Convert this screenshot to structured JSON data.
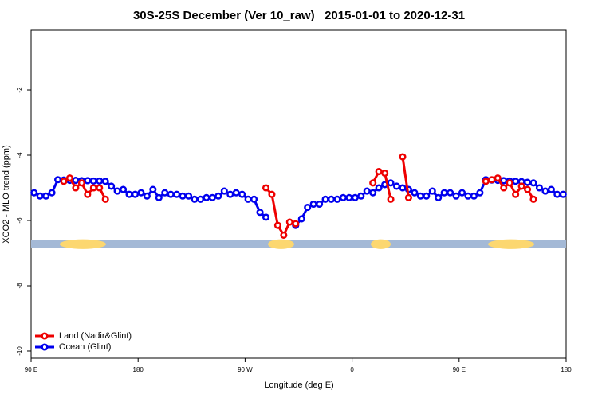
{
  "chart_data": {
    "type": "line",
    "title": "30S-25S December (Ver 10_raw)   2015-01-01 to 2020-12-31",
    "x_label": "Longitude (deg E)",
    "y_label": "XCO2 - MLO trend (ppm)",
    "xlim": [
      90,
      540
    ],
    "ylim": [
      -10.22,
      -0.17
    ],
    "xticks": [
      {
        "value": 90,
        "label": "90 E"
      },
      180,
      {
        "value": 270,
        "label": "90 W"
      },
      {
        "value": 360,
        "label": "0"
      },
      {
        "value": 450,
        "label": "90 E"
      },
      {
        "value": 540,
        "label": "180"
      }
    ],
    "yticks": [
      -10,
      -8,
      -6,
      -4,
      -2
    ],
    "legend": "bottom-left",
    "band": {
      "color": "#a4b9d6",
      "land_color": "#fcd770",
      "ylim": [
        -6.6,
        -6.85
      ],
      "land_spans": [
        [
          114.1,
          153.0
        ],
        [
          289.2,
          311.3
        ],
        [
          375.7,
          392.5
        ],
        [
          474.3,
          513.2
        ]
      ]
    },
    "x": [
      92.5,
      97.5,
      102.5,
      107.5,
      112.5,
      117.5,
      122.5,
      127.5,
      132.5,
      137.5,
      142.5,
      147.5,
      152.5,
      157.5,
      162.5,
      167.5,
      172.5,
      177.5,
      182.5,
      187.5,
      192.5,
      197.5,
      202.5,
      207.5,
      212.5,
      217.5,
      222.5,
      227.5,
      232.5,
      237.5,
      242.5,
      247.5,
      252.5,
      257.5,
      262.5,
      267.5,
      272.5,
      277.5,
      282.5,
      287.5,
      292.5,
      297.5,
      302.5,
      307.5,
      312.5,
      317.5,
      322.5,
      327.5,
      332.5,
      337.5,
      342.5,
      347.5,
      352.5,
      357.5,
      362.5,
      367.5,
      372.5,
      377.5,
      382.5,
      387.5,
      392.5,
      397.5,
      402.5,
      407.5,
      412.5,
      417.5,
      422.5,
      427.5,
      432.5,
      437.5,
      442.5,
      447.5,
      452.5,
      457.5,
      462.5,
      467.5,
      472.5,
      477.5,
      482.5,
      487.5,
      492.5,
      497.5,
      502.5,
      507.5,
      512.5,
      517.5,
      522.5,
      527.5,
      532.5,
      537.5
    ],
    "series": [
      {
        "name": "Ocean (Glint)",
        "color": "#0000ee",
        "values": [
          -5.15,
          -5.25,
          -5.25,
          -5.15,
          -4.75,
          -4.76,
          -4.77,
          -4.77,
          -4.78,
          -4.78,
          -4.79,
          -4.79,
          -4.8,
          -4.95,
          -5.1,
          -5.05,
          -5.2,
          -5.2,
          -5.15,
          -5.25,
          -5.05,
          -5.3,
          -5.15,
          -5.2,
          -5.2,
          -5.25,
          -5.25,
          -5.35,
          -5.35,
          -5.3,
          -5.3,
          -5.25,
          -5.1,
          -5.2,
          -5.15,
          -5.2,
          -5.35,
          -5.35,
          -5.75,
          -5.9,
          null,
          null,
          null,
          null,
          -6.15,
          -5.95,
          -5.6,
          -5.5,
          -5.5,
          -5.35,
          -5.35,
          -5.35,
          -5.3,
          -5.3,
          -5.3,
          -5.25,
          -5.1,
          -5.15,
          -5.0,
          -4.9,
          -4.85,
          -4.95,
          -5.0,
          -5.05,
          -5.15,
          -5.25,
          -5.25,
          -5.1,
          -5.3,
          -5.15,
          -5.15,
          -5.25,
          -5.15,
          -5.25,
          -5.25,
          -5.15,
          -4.75,
          -4.76,
          -4.77,
          -4.78,
          -4.79,
          -4.8,
          -4.81,
          -4.83,
          -4.85,
          -5.0,
          -5.1,
          -5.05,
          -5.2,
          -5.2
        ]
      },
      {
        "name": "Land (Nadir&Glint)",
        "color": "#ee0000",
        "values": [
          null,
          null,
          null,
          null,
          null,
          -4.8,
          -4.7,
          -5.0,
          -4.85,
          -5.2,
          -5.0,
          -5.0,
          -5.35,
          null,
          null,
          null,
          null,
          null,
          null,
          null,
          null,
          null,
          null,
          null,
          null,
          null,
          null,
          null,
          null,
          null,
          null,
          null,
          null,
          null,
          null,
          null,
          null,
          null,
          null,
          -5.0,
          -5.2,
          -6.15,
          -6.45,
          -6.05,
          -6.1,
          null,
          null,
          null,
          null,
          null,
          null,
          null,
          null,
          null,
          null,
          null,
          null,
          -4.85,
          -4.5,
          -4.55,
          -5.35,
          null,
          -4.05,
          -5.3,
          null,
          null,
          null,
          null,
          null,
          null,
          null,
          null,
          null,
          null,
          null,
          null,
          -4.8,
          -4.75,
          -4.7,
          -5.0,
          -4.85,
          -5.2,
          -4.95,
          -5.05,
          -5.35,
          null,
          null,
          null,
          null,
          null
        ]
      }
    ]
  }
}
